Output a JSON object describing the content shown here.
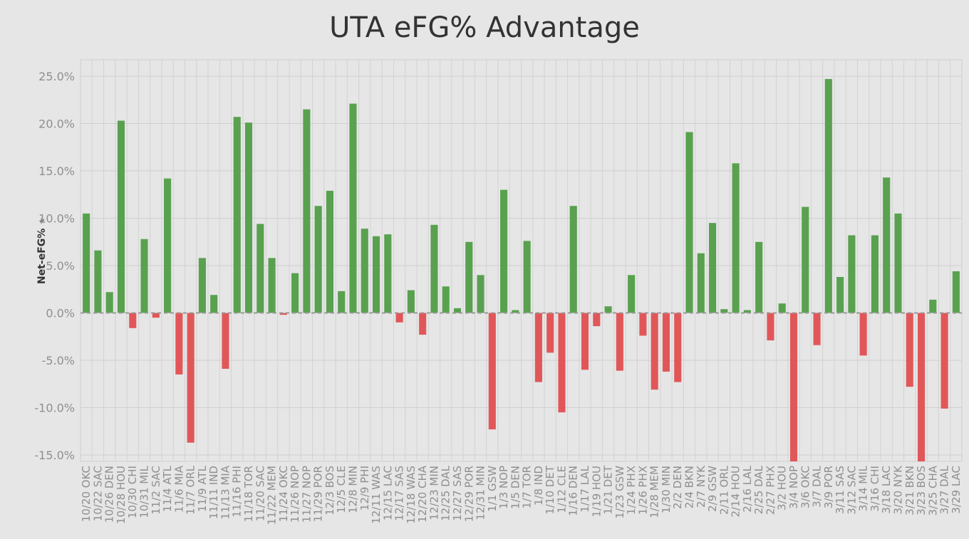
{
  "chart_data": {
    "type": "bar",
    "title": "UTA eFG% Advantage",
    "xlabel": "",
    "ylabel": "Net-eFG%",
    "ylim": [
      -16.0,
      26.0
    ],
    "yticks": [
      -15,
      -10,
      -5,
      0,
      5,
      10,
      15,
      20,
      25
    ],
    "ytick_labels": [
      "-15.0%",
      "-10.0%",
      "-5.0%",
      "0.0%",
      "5.0%",
      "10.0%",
      "15.0%",
      "20.0%",
      "25.0%"
    ],
    "colors": {
      "positive": "#59a14f",
      "negative": "#e15759",
      "zero_line": "#999999"
    },
    "categories": [
      "10/20 OKC",
      "10/22 SAC",
      "10/26 DEN",
      "10/28 HOU",
      "10/30 CHI",
      "10/31 MIL",
      "11/2 SAC",
      "11/4 ATL",
      "11/6 MIA",
      "11/7 ORL",
      "11/9 ATL",
      "11/11 IND",
      "11/13 MIA",
      "11/16 PHI",
      "11/18 TOR",
      "11/20 SAC",
      "11/22 MEM",
      "11/24 OKC",
      "11/26 NOP",
      "11/27 NOP",
      "11/29 POR",
      "12/3 BOS",
      "12/5 CLE",
      "12/8 MIN",
      "12/9 PHI",
      "12/11 WAS",
      "12/15 LAC",
      "12/17 SAS",
      "12/18 WAS",
      "12/20 CHA",
      "12/23 MIN",
      "12/25 DAL",
      "12/27 SAS",
      "12/29 POR",
      "12/31 MIN",
      "1/1 GSW",
      "1/3 NOP",
      "1/5 DEN",
      "1/7 TOR",
      "1/8 IND",
      "1/10 DET",
      "1/12 CLE",
      "1/16 DEN",
      "1/17 LAL",
      "1/19 HOU",
      "1/21 DET",
      "1/23 GSW",
      "1/24 PHX",
      "1/26 PHX",
      "1/28 MEM",
      "1/30 MIN",
      "2/2 DEN",
      "2/4 BKN",
      "2/7 NYK",
      "2/9 GSW",
      "2/11 ORL",
      "2/14 HOU",
      "2/16 LAL",
      "2/25 DAL",
      "2/27 PHX",
      "3/2 HOU",
      "3/4 NOP",
      "3/6 OKC",
      "3/7 DAL",
      "3/9 POR",
      "3/11 SAS",
      "3/12 SAC",
      "3/14 MIL",
      "3/16 CHI",
      "3/18 LAC",
      "3/20 NYK",
      "3/21 BKN",
      "3/23 BOS",
      "3/25 CHA",
      "3/27 DAL",
      "3/29 LAC"
    ],
    "values": [
      10.5,
      6.6,
      2.2,
      20.3,
      -1.6,
      7.8,
      -0.5,
      14.2,
      -6.5,
      -13.7,
      5.8,
      1.9,
      -5.9,
      20.7,
      20.1,
      9.4,
      5.8,
      -0.2,
      4.2,
      21.5,
      11.3,
      12.9,
      2.3,
      22.1,
      8.9,
      8.1,
      8.3,
      -1.0,
      2.4,
      -2.3,
      9.3,
      2.8,
      0.5,
      7.5,
      4.0,
      -12.3,
      13.0,
      0.3,
      7.6,
      -7.3,
      -4.2,
      -10.5,
      11.3,
      -6.0,
      -1.4,
      0.7,
      -6.1,
      4.0,
      -2.4,
      -8.1,
      -6.2,
      -7.3,
      19.1,
      6.3,
      9.5,
      0.4,
      15.8,
      0.3,
      7.5,
      -2.9,
      1.0,
      -15.7,
      11.2,
      -3.4,
      24.7,
      3.8,
      8.2,
      -4.5,
      8.2,
      14.3,
      10.5,
      -7.8,
      -15.7,
      1.4,
      -10.1,
      4.4
    ]
  }
}
